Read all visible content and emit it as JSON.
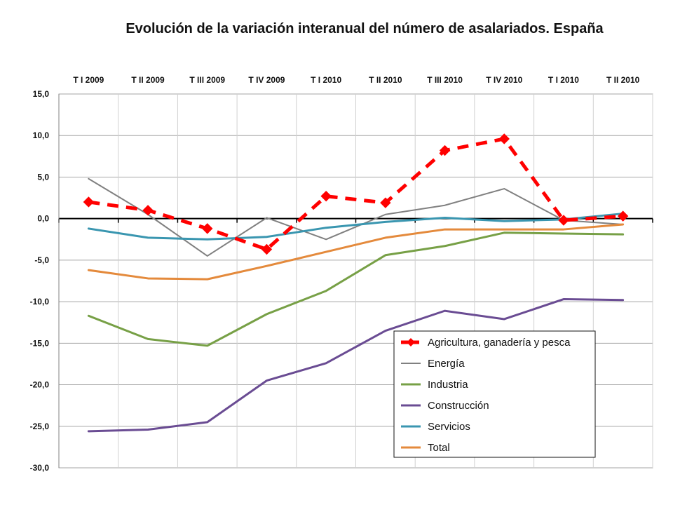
{
  "chart_data": {
    "type": "line",
    "title": "Evolución de la variación interanual del  número de asalariados. España",
    "categories": [
      "T I 2009",
      "T II 2009",
      "T III 2009",
      "T IV 2009",
      "T I 2010",
      "T II 2010",
      "T III 2010",
      "T IV 2010",
      "T I 2010",
      "T II 2010"
    ],
    "yticks": [
      "15,0",
      "10,0",
      "5,0",
      "0,0",
      "-5,0",
      "-10,0",
      "-15,0",
      "-20,0",
      "-25,0",
      "-30,0"
    ],
    "ylim": [
      -30,
      15
    ],
    "grid": true,
    "x_tick_position": "top",
    "legend_position": "bottom-right",
    "series": [
      {
        "name": "Agricultura, ganadería y pesca",
        "color": "#ff0000",
        "dashed": true,
        "markers": "diamond",
        "values": [
          2.0,
          1.0,
          -1.2,
          -3.7,
          2.7,
          1.9,
          8.2,
          9.6,
          -0.2,
          0.3
        ]
      },
      {
        "name": "Energía",
        "color": "#808080",
        "dashed": false,
        "markers": "none",
        "values": [
          4.8,
          0.5,
          -4.5,
          0.1,
          -2.5,
          0.5,
          1.6,
          3.6,
          -0.2,
          -0.7
        ]
      },
      {
        "name": "Industria",
        "color": "#77a046",
        "dashed": false,
        "markers": "none",
        "values": [
          -11.7,
          -14.5,
          -15.3,
          -11.5,
          -8.7,
          -4.4,
          -3.3,
          -1.7,
          -1.8,
          -1.9
        ]
      },
      {
        "name": "Construcción",
        "color": "#6a4c93",
        "dashed": false,
        "markers": "none",
        "values": [
          -25.6,
          -25.4,
          -24.5,
          -19.5,
          -17.4,
          -13.5,
          -11.1,
          -12.1,
          -9.7,
          -9.8
        ]
      },
      {
        "name": "Servicios",
        "color": "#3a96b0",
        "dashed": false,
        "markers": "none",
        "values": [
          -1.2,
          -2.3,
          -2.5,
          -2.2,
          -1.1,
          -0.4,
          0.1,
          -0.3,
          -0.1,
          0.6
        ]
      },
      {
        "name": "Total",
        "color": "#e48a3c",
        "dashed": false,
        "markers": "none",
        "values": [
          -6.2,
          -7.2,
          -7.3,
          -5.7,
          -4.0,
          -2.3,
          -1.3,
          -1.3,
          -1.3,
          -0.7
        ]
      }
    ]
  }
}
